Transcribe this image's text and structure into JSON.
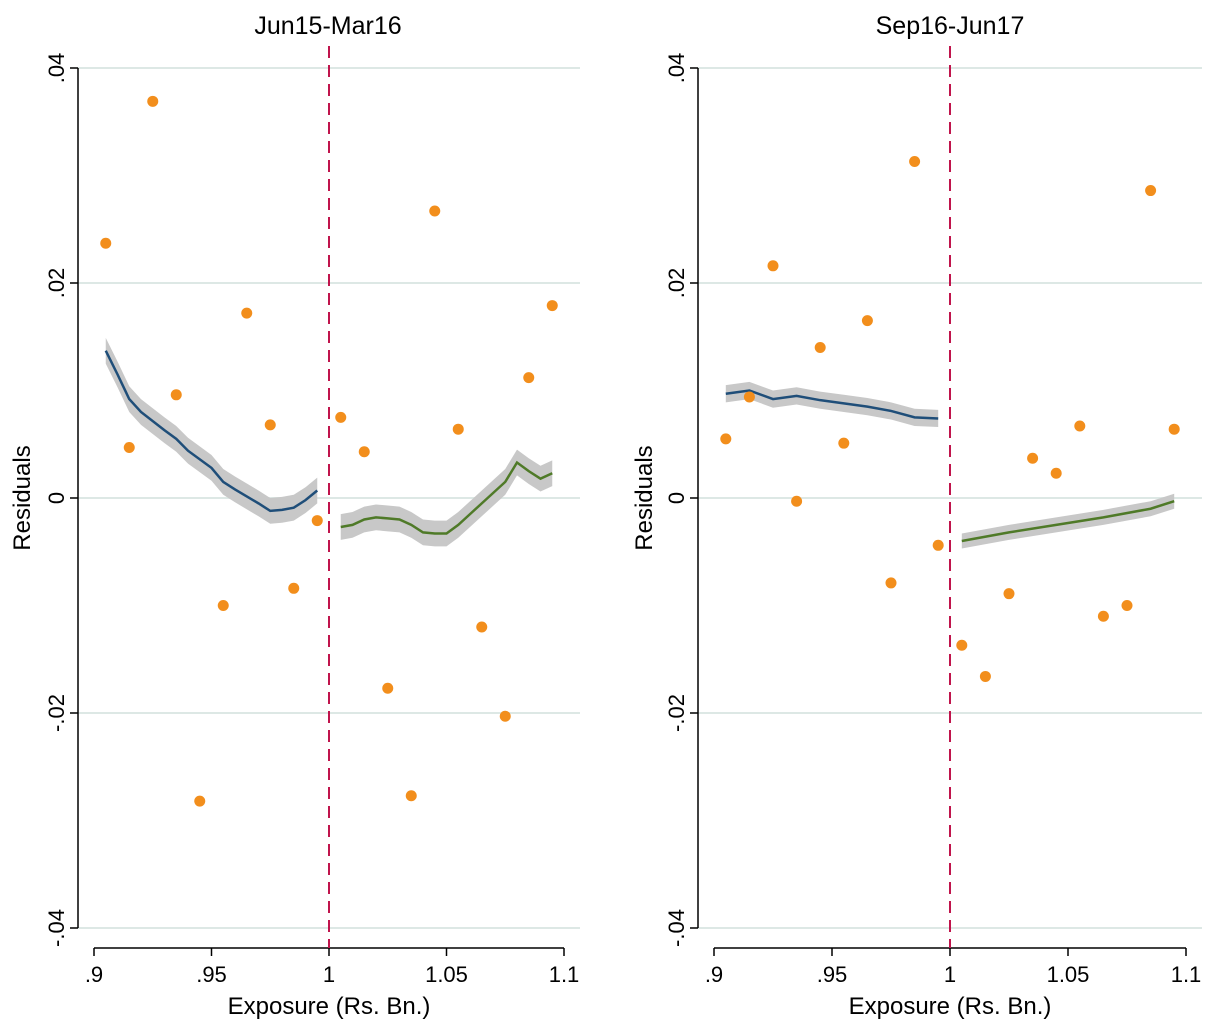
{
  "chart_data": [
    {
      "type": "scatter",
      "title": "Jun15-Mar16",
      "xlabel": "Exposure (Rs. Bn.)",
      "ylabel": "Residuals",
      "xlim": [
        0.9,
        1.1
      ],
      "ylim": [
        -0.04,
        0.04
      ],
      "xticks": [
        0.9,
        0.95,
        1,
        1.05,
        1.1
      ],
      "xtick_labels": [
        ".9",
        ".95",
        "1",
        "1.05",
        "1.1"
      ],
      "yticks": [
        -0.04,
        -0.02,
        0,
        0.02,
        0.04
      ],
      "ytick_labels": [
        "-.04",
        "-.02",
        "0",
        ".02",
        ".04"
      ],
      "grid": true,
      "cutoff": 1,
      "colors": {
        "points": "#f28e1c",
        "left_fit": "#1f4e79",
        "right_fit": "#4f7a28",
        "ci_band": "#c8c8c8",
        "cutoff_line": "#c0144c",
        "grid": "#dde8e5"
      },
      "points": {
        "x": [
          0.905,
          0.915,
          0.925,
          0.935,
          0.945,
          0.955,
          0.965,
          0.975,
          0.985,
          0.995,
          1.005,
          1.015,
          1.025,
          1.035,
          1.045,
          1.055,
          1.065,
          1.075,
          1.085,
          1.095
        ],
        "y": [
          0.0237,
          0.0047,
          0.0369,
          0.0096,
          -0.0282,
          -0.01,
          0.0172,
          0.0068,
          -0.0084,
          -0.0021,
          0.0075,
          0.0043,
          -0.0177,
          -0.0277,
          0.0267,
          0.0064,
          -0.012,
          -0.0203,
          0.0112,
          0.0179
        ]
      },
      "fits": [
        {
          "side": "left",
          "x": [
            0.905,
            0.91,
            0.915,
            0.92,
            0.93,
            0.935,
            0.94,
            0.95,
            0.955,
            0.96,
            0.97,
            0.975,
            0.98,
            0.985,
            0.99,
            0.995
          ],
          "y": [
            0.0137,
            0.0115,
            0.0092,
            0.008,
            0.0063,
            0.0055,
            0.0044,
            0.0028,
            0.0015,
            0.0008,
            -0.0005,
            -0.0012,
            -0.0011,
            -0.0009,
            -0.0002,
            0.0007
          ],
          "band": 0.0012
        },
        {
          "side": "right",
          "x": [
            1.005,
            1.01,
            1.015,
            1.02,
            1.025,
            1.03,
            1.035,
            1.04,
            1.045,
            1.05,
            1.055,
            1.06,
            1.065,
            1.07,
            1.075,
            1.08,
            1.085,
            1.09,
            1.095
          ],
          "y": [
            -0.0027,
            -0.0025,
            -0.002,
            -0.0018,
            -0.0019,
            -0.002,
            -0.0025,
            -0.0032,
            -0.0033,
            -0.0033,
            -0.0025,
            -0.0015,
            -0.0005,
            0.0005,
            0.0015,
            0.0033,
            0.0025,
            0.0018,
            0.0023
          ],
          "band": 0.0012
        }
      ]
    },
    {
      "type": "scatter",
      "title": "Sep16-Jun17",
      "xlabel": "Exposure (Rs. Bn.)",
      "ylabel": "Residuals",
      "xlim": [
        0.9,
        1.1
      ],
      "ylim": [
        -0.04,
        0.04
      ],
      "xticks": [
        0.9,
        0.95,
        1,
        1.05,
        1.1
      ],
      "xtick_labels": [
        ".9",
        ".95",
        "1",
        "1.05",
        "1.1"
      ],
      "yticks": [
        -0.04,
        -0.02,
        0,
        0.02,
        0.04
      ],
      "ytick_labels": [
        "-.04",
        "-.02",
        "0",
        ".02",
        ".04"
      ],
      "grid": true,
      "cutoff": 1,
      "colors": {
        "points": "#f28e1c",
        "left_fit": "#1f4e79",
        "right_fit": "#4f7a28",
        "ci_band": "#c8c8c8",
        "cutoff_line": "#c0144c",
        "grid": "#dde8e5"
      },
      "points": {
        "x": [
          0.905,
          0.915,
          0.925,
          0.935,
          0.945,
          0.955,
          0.965,
          0.975,
          0.985,
          0.995,
          1.005,
          1.015,
          1.025,
          1.035,
          1.045,
          1.055,
          1.065,
          1.075,
          1.085,
          1.095
        ],
        "y": [
          0.0055,
          0.0094,
          0.0216,
          -0.0003,
          0.014,
          0.0051,
          0.0165,
          -0.0079,
          0.0313,
          -0.0044,
          -0.0137,
          -0.0166,
          -0.0089,
          0.0037,
          0.0023,
          0.0067,
          -0.011,
          -0.01,
          0.0286,
          0.0064
        ]
      },
      "fits": [
        {
          "side": "left",
          "x": [
            0.905,
            0.915,
            0.925,
            0.935,
            0.945,
            0.955,
            0.965,
            0.975,
            0.985,
            0.995
          ],
          "y": [
            0.0097,
            0.01,
            0.0092,
            0.0095,
            0.0091,
            0.0088,
            0.0085,
            0.0081,
            0.0075,
            0.0074
          ],
          "band": 0.0008
        },
        {
          "side": "right",
          "x": [
            1.005,
            1.025,
            1.045,
            1.065,
            1.085,
            1.095
          ],
          "y": [
            -0.004,
            -0.0032,
            -0.0025,
            -0.0018,
            -0.001,
            -0.0003
          ],
          "band": 0.0007
        }
      ]
    }
  ]
}
